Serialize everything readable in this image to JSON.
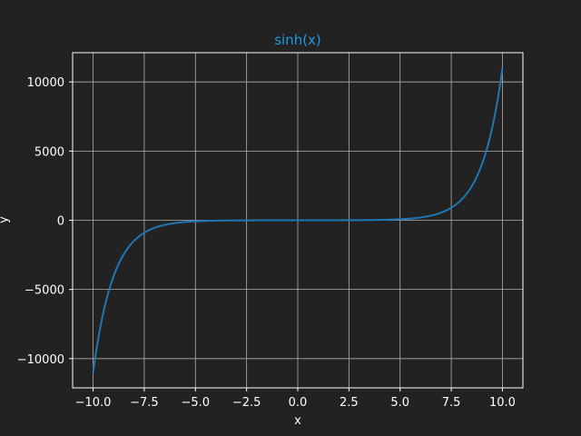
{
  "colors": {
    "background": "#222222",
    "axes_edge": "#ffffff",
    "grid": "#b0b0b0",
    "text": "#ffffff",
    "title": "#1f9be6",
    "line": "#1f77b4"
  },
  "chart_data": {
    "type": "line",
    "title": "sinh(x)",
    "xlabel": "x",
    "ylabel": "y",
    "grid": true,
    "xlim": [
      -11.0,
      11.0
    ],
    "ylim": [
      -12114,
      12114
    ],
    "xticks": [
      -10.0,
      -7.5,
      -5.0,
      -2.5,
      0.0,
      2.5,
      5.0,
      7.5,
      10.0
    ],
    "xtick_labels": [
      "−10.0",
      "−7.5",
      "−5.0",
      "−2.5",
      "0.0",
      "2.5",
      "5.0",
      "7.5",
      "10.0"
    ],
    "yticks": [
      -10000,
      -5000,
      0,
      5000,
      10000
    ],
    "ytick_labels": [
      "−10000",
      "−5000",
      "0",
      "5000",
      "10000"
    ],
    "series": [
      {
        "function": "sinh",
        "x": [
          -10.0,
          -9.5,
          -9.0,
          -8.5,
          -8.0,
          -7.5,
          -7.0,
          -6.5,
          -6.0,
          -5.5,
          -5.0,
          -4.0,
          -3.0,
          -2.0,
          -1.0,
          0.0,
          1.0,
          2.0,
          3.0,
          4.0,
          5.0,
          5.5,
          6.0,
          6.5,
          7.0,
          7.5,
          8.0,
          8.5,
          9.0,
          9.5,
          10.0
        ],
        "y": [
          -11013.2,
          -6679.9,
          -4051.5,
          -2457.4,
          -1490.5,
          -904.0,
          -548.3,
          -332.6,
          -201.7,
          -122.3,
          -74.2,
          -27.3,
          -10.0,
          -3.6,
          -1.2,
          0.0,
          1.2,
          3.6,
          10.0,
          27.3,
          74.2,
          122.3,
          201.7,
          332.6,
          548.3,
          904.0,
          1490.5,
          2457.4,
          4051.5,
          6679.9,
          11013.2
        ]
      }
    ]
  }
}
